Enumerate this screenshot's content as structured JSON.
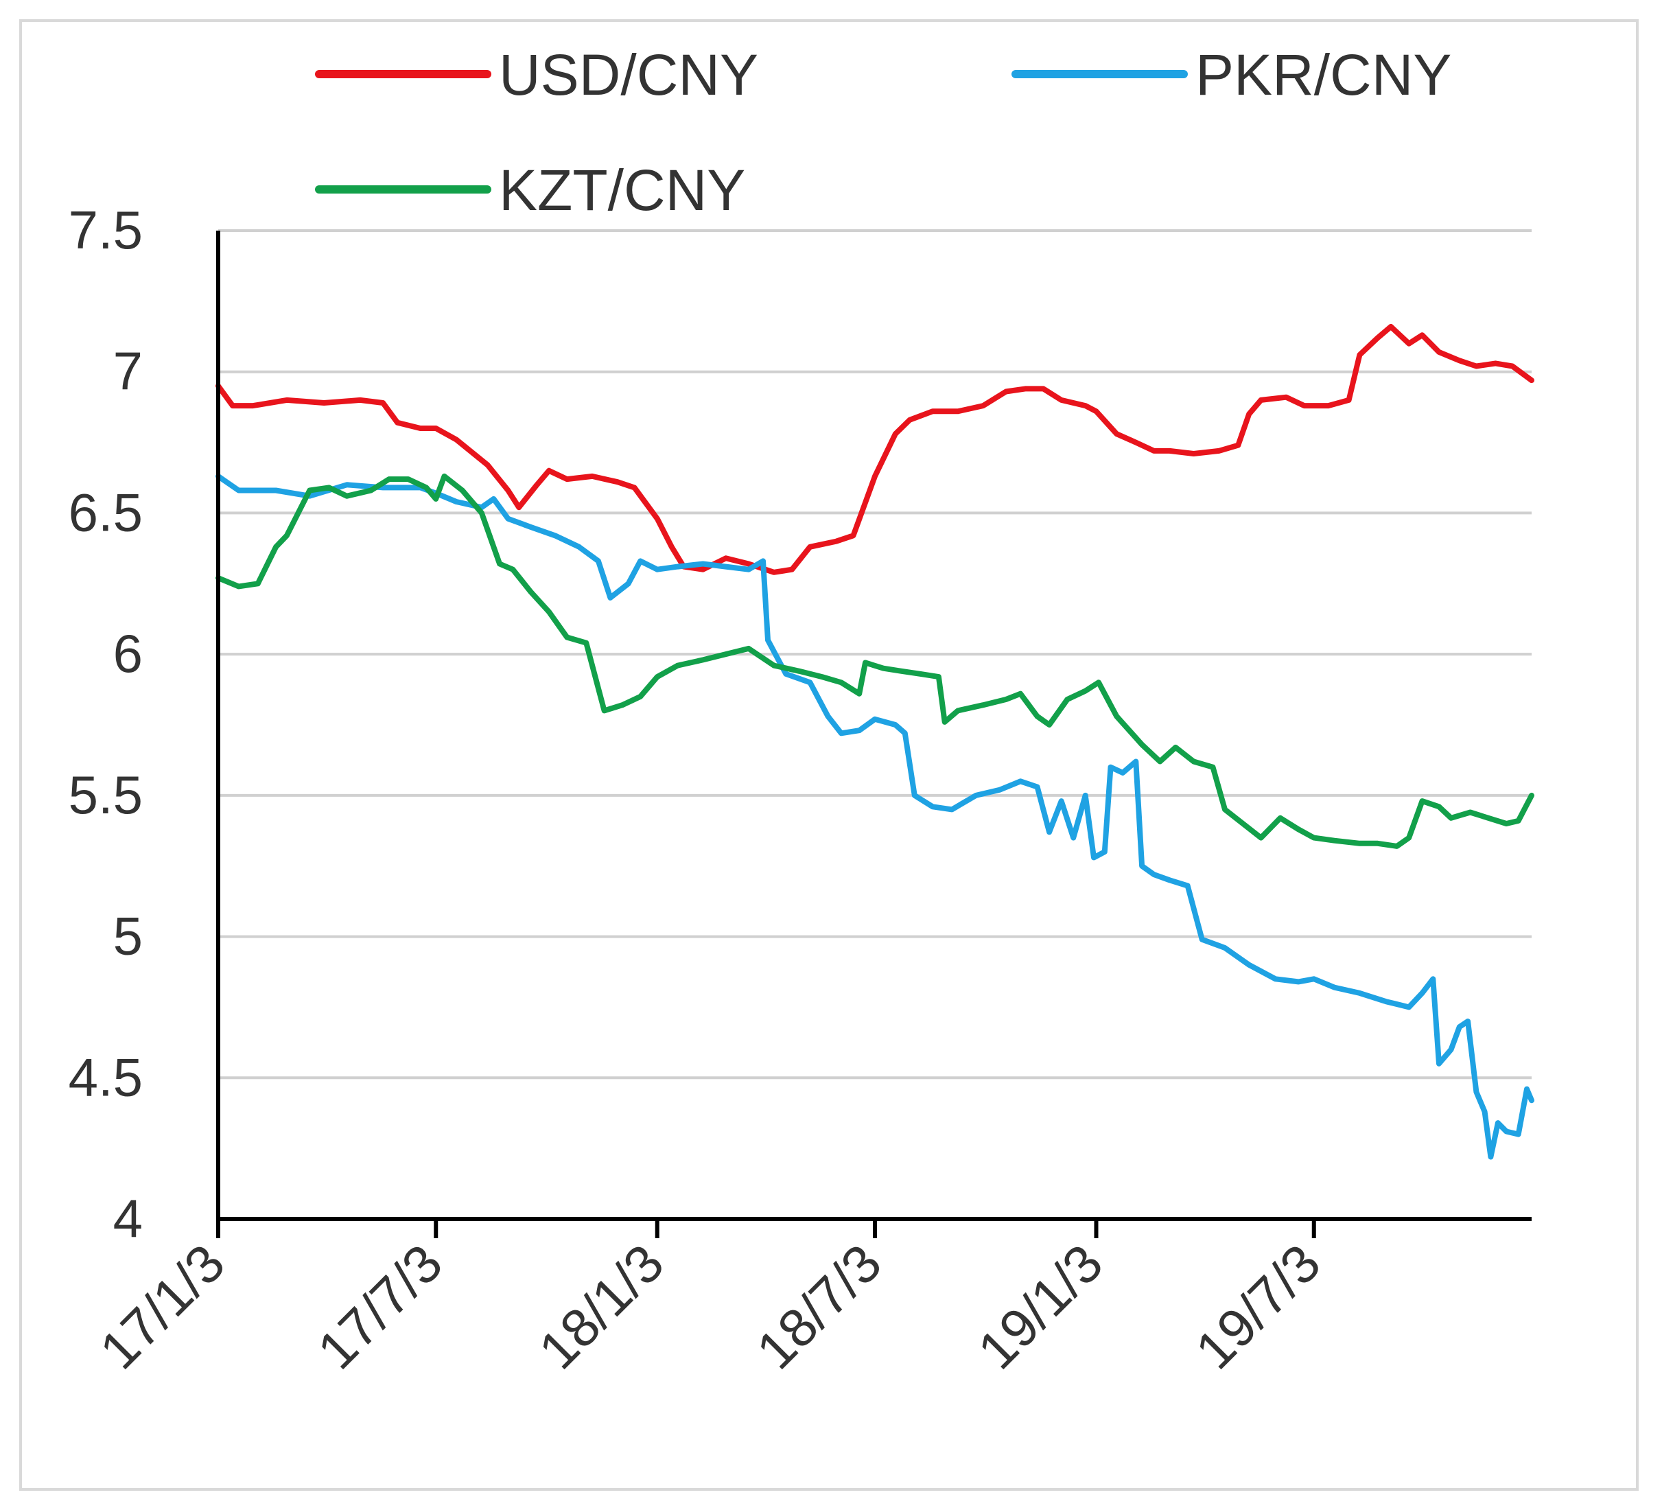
{
  "chart_data": {
    "type": "line",
    "title": "",
    "xlabel": "",
    "ylabel": "",
    "ylim": [
      4,
      7.5
    ],
    "yticks": [
      4,
      4.5,
      5,
      5.5,
      6,
      6.5,
      7,
      7.5
    ],
    "ytick_labels": [
      "4",
      "4.5",
      "5",
      "5.5",
      "6",
      "6.5",
      "7",
      "7.5"
    ],
    "xlim": [
      "2017-01-03",
      "2019-12-31"
    ],
    "xticks": [
      "2017-01-03",
      "2017-07-03",
      "2018-01-03",
      "2018-07-03",
      "2019-01-03",
      "2019-07-03"
    ],
    "xtick_labels": [
      "17/1/3",
      "17/7/3",
      "18/1/3",
      "18/7/3",
      "19/1/3",
      "19/7/3"
    ],
    "grid": "horizontal",
    "legend_position": "top",
    "series": [
      {
        "name": "USD/CNY",
        "color": "#e8141c",
        "points": [
          [
            "2017-01-03",
            6.95
          ],
          [
            "2017-01-15",
            6.88
          ],
          [
            "2017-02-01",
            6.88
          ],
          [
            "2017-03-01",
            6.9
          ],
          [
            "2017-04-01",
            6.89
          ],
          [
            "2017-05-01",
            6.9
          ],
          [
            "2017-05-20",
            6.89
          ],
          [
            "2017-06-01",
            6.82
          ],
          [
            "2017-06-20",
            6.8
          ],
          [
            "2017-07-03",
            6.8
          ],
          [
            "2017-07-20",
            6.76
          ],
          [
            "2017-08-15",
            6.67
          ],
          [
            "2017-09-01",
            6.58
          ],
          [
            "2017-09-10",
            6.52
          ],
          [
            "2017-09-25",
            6.6
          ],
          [
            "2017-10-05",
            6.65
          ],
          [
            "2017-10-20",
            6.62
          ],
          [
            "2017-11-10",
            6.63
          ],
          [
            "2017-12-01",
            6.61
          ],
          [
            "2017-12-15",
            6.59
          ],
          [
            "2018-01-03",
            6.48
          ],
          [
            "2018-01-15",
            6.38
          ],
          [
            "2018-01-25",
            6.31
          ],
          [
            "2018-02-10",
            6.3
          ],
          [
            "2018-03-01",
            6.34
          ],
          [
            "2018-03-20",
            6.32
          ],
          [
            "2018-04-10",
            6.29
          ],
          [
            "2018-04-25",
            6.3
          ],
          [
            "2018-05-10",
            6.38
          ],
          [
            "2018-06-01",
            6.4
          ],
          [
            "2018-06-15",
            6.42
          ],
          [
            "2018-07-03",
            6.63
          ],
          [
            "2018-07-20",
            6.78
          ],
          [
            "2018-08-01",
            6.83
          ],
          [
            "2018-08-20",
            6.86
          ],
          [
            "2018-09-10",
            6.86
          ],
          [
            "2018-10-01",
            6.88
          ],
          [
            "2018-10-20",
            6.93
          ],
          [
            "2018-11-05",
            6.94
          ],
          [
            "2018-11-20",
            6.94
          ],
          [
            "2018-12-05",
            6.9
          ],
          [
            "2018-12-25",
            6.88
          ],
          [
            "2019-01-03",
            6.86
          ],
          [
            "2019-01-20",
            6.78
          ],
          [
            "2019-02-05",
            6.75
          ],
          [
            "2019-02-20",
            6.72
          ],
          [
            "2019-03-05",
            6.72
          ],
          [
            "2019-03-25",
            6.71
          ],
          [
            "2019-04-15",
            6.72
          ],
          [
            "2019-05-01",
            6.74
          ],
          [
            "2019-05-10",
            6.85
          ],
          [
            "2019-05-20",
            6.9
          ],
          [
            "2019-06-10",
            6.91
          ],
          [
            "2019-06-25",
            6.88
          ],
          [
            "2019-07-15",
            6.88
          ],
          [
            "2019-08-01",
            6.9
          ],
          [
            "2019-08-10",
            7.06
          ],
          [
            "2019-08-25",
            7.12
          ],
          [
            "2019-09-05",
            7.16
          ],
          [
            "2019-09-20",
            7.1
          ],
          [
            "2019-10-01",
            7.13
          ],
          [
            "2019-10-15",
            7.07
          ],
          [
            "2019-11-01",
            7.04
          ],
          [
            "2019-11-15",
            7.02
          ],
          [
            "2019-12-01",
            7.03
          ],
          [
            "2019-12-15",
            7.02
          ],
          [
            "2019-12-31",
            6.97
          ]
        ]
      },
      {
        "name": "PKR/CNY",
        "color": "#1fa2e3",
        "points": [
          [
            "2017-01-03",
            6.63
          ],
          [
            "2017-01-20",
            6.58
          ],
          [
            "2017-02-20",
            6.58
          ],
          [
            "2017-03-20",
            6.56
          ],
          [
            "2017-04-20",
            6.6
          ],
          [
            "2017-05-20",
            6.59
          ],
          [
            "2017-06-20",
            6.59
          ],
          [
            "2017-07-03",
            6.57
          ],
          [
            "2017-07-20",
            6.54
          ],
          [
            "2017-08-10",
            6.52
          ],
          [
            "2017-08-20",
            6.55
          ],
          [
            "2017-09-01",
            6.48
          ],
          [
            "2017-09-20",
            6.45
          ],
          [
            "2017-10-10",
            6.42
          ],
          [
            "2017-10-30",
            6.38
          ],
          [
            "2017-11-15",
            6.33
          ],
          [
            "2017-11-25",
            6.2
          ],
          [
            "2017-12-10",
            6.25
          ],
          [
            "2017-12-20",
            6.33
          ],
          [
            "2018-01-03",
            6.3
          ],
          [
            "2018-01-20",
            6.31
          ],
          [
            "2018-02-10",
            6.32
          ],
          [
            "2018-03-01",
            6.31
          ],
          [
            "2018-03-20",
            6.3
          ],
          [
            "2018-04-01",
            6.33
          ],
          [
            "2018-04-05",
            6.05
          ],
          [
            "2018-04-20",
            5.93
          ],
          [
            "2018-05-10",
            5.9
          ],
          [
            "2018-05-25",
            5.78
          ],
          [
            "2018-06-05",
            5.72
          ],
          [
            "2018-06-20",
            5.73
          ],
          [
            "2018-07-03",
            5.77
          ],
          [
            "2018-07-20",
            5.75
          ],
          [
            "2018-07-28",
            5.72
          ],
          [
            "2018-08-05",
            5.5
          ],
          [
            "2018-08-20",
            5.46
          ],
          [
            "2018-09-05",
            5.45
          ],
          [
            "2018-09-25",
            5.5
          ],
          [
            "2018-10-15",
            5.52
          ],
          [
            "2018-11-01",
            5.55
          ],
          [
            "2018-11-15",
            5.53
          ],
          [
            "2018-11-25",
            5.37
          ],
          [
            "2018-12-05",
            5.48
          ],
          [
            "2018-12-15",
            5.35
          ],
          [
            "2018-12-25",
            5.5
          ],
          [
            "2019-01-01",
            5.28
          ],
          [
            "2019-01-10",
            5.3
          ],
          [
            "2019-01-15",
            5.6
          ],
          [
            "2019-01-25",
            5.58
          ],
          [
            "2019-02-05",
            5.62
          ],
          [
            "2019-02-10",
            5.25
          ],
          [
            "2019-02-20",
            5.22
          ],
          [
            "2019-03-05",
            5.2
          ],
          [
            "2019-03-20",
            5.18
          ],
          [
            "2019-04-01",
            4.99
          ],
          [
            "2019-04-20",
            4.96
          ],
          [
            "2019-05-10",
            4.9
          ],
          [
            "2019-06-01",
            4.85
          ],
          [
            "2019-06-20",
            4.84
          ],
          [
            "2019-07-03",
            4.85
          ],
          [
            "2019-07-20",
            4.82
          ],
          [
            "2019-08-10",
            4.8
          ],
          [
            "2019-09-01",
            4.77
          ],
          [
            "2019-09-20",
            4.75
          ],
          [
            "2019-10-01",
            4.8
          ],
          [
            "2019-10-10",
            4.85
          ],
          [
            "2019-10-15",
            4.55
          ],
          [
            "2019-10-25",
            4.6
          ],
          [
            "2019-11-01",
            4.68
          ],
          [
            "2019-11-08",
            4.7
          ],
          [
            "2019-11-15",
            4.45
          ],
          [
            "2019-11-22",
            4.38
          ],
          [
            "2019-11-27",
            4.22
          ],
          [
            "2019-12-03",
            4.34
          ],
          [
            "2019-12-10",
            4.31
          ],
          [
            "2019-12-20",
            4.3
          ],
          [
            "2019-12-27",
            4.46
          ],
          [
            "2019-12-31",
            4.42
          ]
        ]
      },
      {
        "name": "KZT/CNY",
        "color": "#12a04a",
        "points": [
          [
            "2017-01-03",
            6.27
          ],
          [
            "2017-01-20",
            6.24
          ],
          [
            "2017-02-05",
            6.25
          ],
          [
            "2017-02-20",
            6.38
          ],
          [
            "2017-03-01",
            6.42
          ],
          [
            "2017-03-20",
            6.58
          ],
          [
            "2017-04-05",
            6.59
          ],
          [
            "2017-04-20",
            6.56
          ],
          [
            "2017-05-10",
            6.58
          ],
          [
            "2017-05-25",
            6.62
          ],
          [
            "2017-06-10",
            6.62
          ],
          [
            "2017-06-25",
            6.59
          ],
          [
            "2017-07-03",
            6.55
          ],
          [
            "2017-07-10",
            6.63
          ],
          [
            "2017-07-25",
            6.58
          ],
          [
            "2017-08-10",
            6.5
          ],
          [
            "2017-08-25",
            6.32
          ],
          [
            "2017-09-05",
            6.3
          ],
          [
            "2017-09-20",
            6.22
          ],
          [
            "2017-10-05",
            6.15
          ],
          [
            "2017-10-20",
            6.06
          ],
          [
            "2017-11-05",
            6.04
          ],
          [
            "2017-11-20",
            5.8
          ],
          [
            "2017-12-05",
            5.82
          ],
          [
            "2017-12-20",
            5.85
          ],
          [
            "2018-01-03",
            5.92
          ],
          [
            "2018-01-20",
            5.96
          ],
          [
            "2018-02-10",
            5.98
          ],
          [
            "2018-03-01",
            6.0
          ],
          [
            "2018-03-20",
            6.02
          ],
          [
            "2018-04-10",
            5.96
          ],
          [
            "2018-05-01",
            5.94
          ],
          [
            "2018-05-20",
            5.92
          ],
          [
            "2018-06-05",
            5.9
          ],
          [
            "2018-06-20",
            5.86
          ],
          [
            "2018-06-25",
            5.97
          ],
          [
            "2018-07-10",
            5.95
          ],
          [
            "2018-07-25",
            5.94
          ],
          [
            "2018-08-10",
            5.93
          ],
          [
            "2018-08-25",
            5.92
          ],
          [
            "2018-08-30",
            5.76
          ],
          [
            "2018-09-10",
            5.8
          ],
          [
            "2018-10-01",
            5.82
          ],
          [
            "2018-10-20",
            5.84
          ],
          [
            "2018-11-01",
            5.86
          ],
          [
            "2018-11-15",
            5.78
          ],
          [
            "2018-11-25",
            5.75
          ],
          [
            "2018-12-10",
            5.84
          ],
          [
            "2018-12-25",
            5.87
          ],
          [
            "2019-01-05",
            5.9
          ],
          [
            "2019-01-20",
            5.78
          ],
          [
            "2019-02-10",
            5.68
          ],
          [
            "2019-02-25",
            5.62
          ],
          [
            "2019-03-10",
            5.67
          ],
          [
            "2019-03-25",
            5.62
          ],
          [
            "2019-04-10",
            5.6
          ],
          [
            "2019-04-20",
            5.45
          ],
          [
            "2019-05-05",
            5.4
          ],
          [
            "2019-05-20",
            5.35
          ],
          [
            "2019-06-05",
            5.42
          ],
          [
            "2019-06-20",
            5.38
          ],
          [
            "2019-07-03",
            5.35
          ],
          [
            "2019-07-20",
            5.34
          ],
          [
            "2019-08-10",
            5.33
          ],
          [
            "2019-08-25",
            5.33
          ],
          [
            "2019-09-10",
            5.32
          ],
          [
            "2019-09-20",
            5.35
          ],
          [
            "2019-10-01",
            5.48
          ],
          [
            "2019-10-15",
            5.46
          ],
          [
            "2019-10-25",
            5.42
          ],
          [
            "2019-11-10",
            5.44
          ],
          [
            "2019-11-25",
            5.42
          ],
          [
            "2019-12-10",
            5.4
          ],
          [
            "2019-12-20",
            5.41
          ],
          [
            "2019-12-31",
            5.5
          ]
        ]
      }
    ]
  }
}
